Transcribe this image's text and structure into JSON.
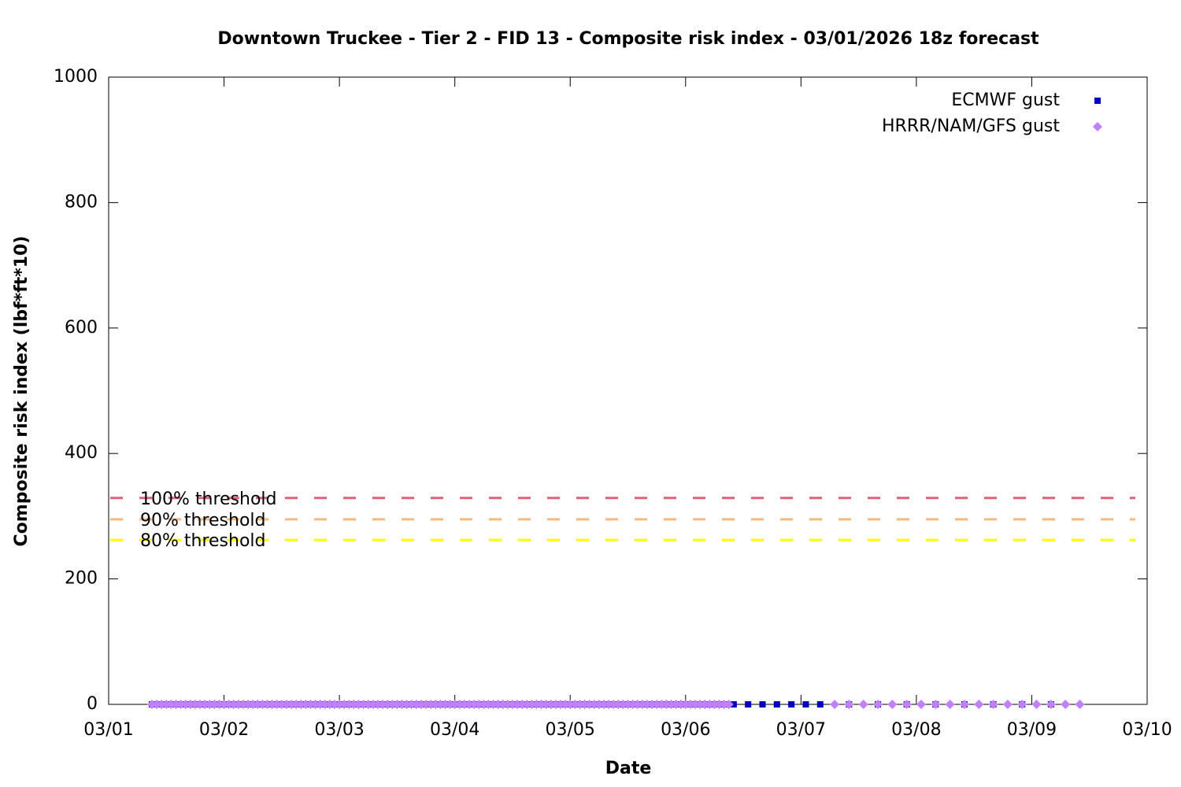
{
  "chart_data": {
    "type": "scatter",
    "title": "Downtown Truckee - Tier 2 - FID 13 - Composite risk index - 03/01/2026 18z forecast",
    "xlabel": "Date",
    "ylabel": "Composite risk index (lbf*ft*10)",
    "xlim": [
      0,
      216
    ],
    "xticks": [
      {
        "value": 0,
        "label": "03/01"
      },
      {
        "value": 24,
        "label": "03/02"
      },
      {
        "value": 48,
        "label": "03/03"
      },
      {
        "value": 72,
        "label": "03/04"
      },
      {
        "value": 96,
        "label": "03/05"
      },
      {
        "value": 120,
        "label": "03/06"
      },
      {
        "value": 144,
        "label": "03/07"
      },
      {
        "value": 168,
        "label": "03/08"
      },
      {
        "value": 192,
        "label": "03/09"
      },
      {
        "value": 216,
        "label": "03/10"
      }
    ],
    "ylim": [
      0,
      1000
    ],
    "yticks": [
      0,
      200,
      400,
      600,
      800,
      1000
    ],
    "legend": "top-right",
    "thresholds": [
      {
        "label": "100% threshold",
        "value": 329,
        "color": "#e0627a"
      },
      {
        "label": "90% threshold",
        "value": 295,
        "color": "#f7b97c"
      },
      {
        "label": "80% threshold",
        "value": 262,
        "color": "#ffff00"
      }
    ],
    "series": [
      {
        "name": "ECMWF gust",
        "color": "#0000c0",
        "marker": "square",
        "x": [
          9,
          10,
          11,
          12,
          13,
          14,
          15,
          16,
          17,
          18,
          19,
          20,
          21,
          22,
          23,
          24,
          25,
          26,
          27,
          28,
          29,
          30,
          31,
          32,
          33,
          34,
          35,
          36,
          37,
          38,
          39,
          40,
          41,
          42,
          43,
          44,
          45,
          46,
          47,
          48,
          49,
          50,
          51,
          52,
          53,
          54,
          55,
          56,
          57,
          58,
          59,
          60,
          61,
          62,
          63,
          64,
          65,
          66,
          67,
          68,
          69,
          70,
          71,
          72,
          73,
          74,
          75,
          76,
          77,
          78,
          79,
          80,
          81,
          82,
          83,
          84,
          85,
          86,
          87,
          88,
          89,
          90,
          91,
          92,
          93,
          94,
          95,
          96,
          97,
          98,
          99,
          100,
          101,
          102,
          103,
          104,
          105,
          106,
          107,
          108,
          109,
          110,
          111,
          112,
          113,
          114,
          115,
          116,
          117,
          118,
          119,
          120,
          121,
          122,
          123,
          124,
          125,
          126,
          127,
          128,
          129,
          130,
          133,
          136,
          139,
          142,
          145,
          148,
          154,
          160,
          166,
          172,
          178,
          184,
          190,
          196
        ],
        "values": [
          0,
          0,
          0,
          0,
          0,
          0,
          0,
          0,
          0,
          0,
          0,
          0,
          0,
          0,
          0,
          0,
          0,
          0,
          0,
          0,
          0,
          0,
          0,
          0,
          0,
          0,
          0,
          0,
          0,
          0,
          0,
          0,
          0,
          0,
          0,
          0,
          0,
          0,
          0,
          0,
          0,
          0,
          0,
          0,
          0,
          0,
          0,
          0,
          0,
          0,
          0,
          0,
          0,
          0,
          0,
          0,
          0,
          0,
          0,
          0,
          0,
          0,
          0,
          0,
          0,
          0,
          0,
          0,
          0,
          0,
          0,
          0,
          0,
          0,
          0,
          0,
          0,
          0,
          0,
          0,
          0,
          0,
          0,
          0,
          0,
          0,
          0,
          0,
          0,
          0,
          0,
          0,
          0,
          0,
          0,
          0,
          0,
          0,
          0,
          0,
          0,
          0,
          0,
          0,
          0,
          0,
          0,
          0,
          0,
          0,
          0,
          0,
          0,
          0,
          0,
          0,
          0,
          0,
          0,
          0,
          0,
          0,
          0,
          0,
          0,
          0,
          0,
          0,
          0,
          0,
          0,
          0,
          0,
          0,
          0,
          0
        ]
      },
      {
        "name": "HRRR/NAM/GFS gust",
        "color": "#c080ff",
        "marker": "diamond",
        "x": [
          9,
          10,
          11,
          12,
          13,
          14,
          15,
          16,
          17,
          18,
          19,
          20,
          21,
          22,
          23,
          24,
          25,
          26,
          27,
          28,
          29,
          30,
          31,
          32,
          33,
          34,
          35,
          36,
          37,
          38,
          39,
          40,
          41,
          42,
          43,
          44,
          45,
          46,
          47,
          48,
          49,
          50,
          51,
          52,
          53,
          54,
          55,
          56,
          57,
          58,
          59,
          60,
          61,
          62,
          63,
          64,
          65,
          66,
          67,
          68,
          69,
          70,
          71,
          72,
          73,
          74,
          75,
          76,
          77,
          78,
          79,
          80,
          81,
          82,
          83,
          84,
          85,
          86,
          87,
          88,
          89,
          90,
          91,
          92,
          93,
          94,
          95,
          96,
          97,
          98,
          99,
          100,
          101,
          102,
          103,
          104,
          105,
          106,
          107,
          108,
          109,
          110,
          111,
          112,
          113,
          114,
          115,
          116,
          117,
          118,
          119,
          120,
          121,
          122,
          123,
          124,
          125,
          126,
          127,
          128,
          129,
          151,
          154,
          157,
          160,
          163,
          166,
          169,
          172,
          175,
          178,
          181,
          184,
          187,
          190,
          193,
          196,
          199,
          202
        ],
        "values": [
          0,
          0,
          0,
          0,
          0,
          0,
          0,
          0,
          0,
          0,
          0,
          0,
          0,
          0,
          0,
          0,
          0,
          0,
          0,
          0,
          0,
          0,
          0,
          0,
          0,
          0,
          0,
          0,
          0,
          0,
          0,
          0,
          0,
          0,
          0,
          0,
          0,
          0,
          0,
          0,
          0,
          0,
          0,
          0,
          0,
          0,
          0,
          0,
          0,
          0,
          0,
          0,
          0,
          0,
          0,
          0,
          0,
          0,
          0,
          0,
          0,
          0,
          0,
          0,
          0,
          0,
          0,
          0,
          0,
          0,
          0,
          0,
          0,
          0,
          0,
          0,
          0,
          0,
          0,
          0,
          0,
          0,
          0,
          0,
          0,
          0,
          0,
          0,
          0,
          0,
          0,
          0,
          0,
          0,
          0,
          0,
          0,
          0,
          0,
          0,
          0,
          0,
          0,
          0,
          0,
          0,
          0,
          0,
          0,
          0,
          0,
          0,
          0,
          0,
          0,
          0,
          0,
          0,
          0,
          0,
          0,
          0,
          0,
          0,
          0,
          0,
          0,
          0,
          0,
          0,
          0,
          0,
          0,
          0,
          0,
          0,
          0,
          0,
          0
        ]
      }
    ]
  }
}
